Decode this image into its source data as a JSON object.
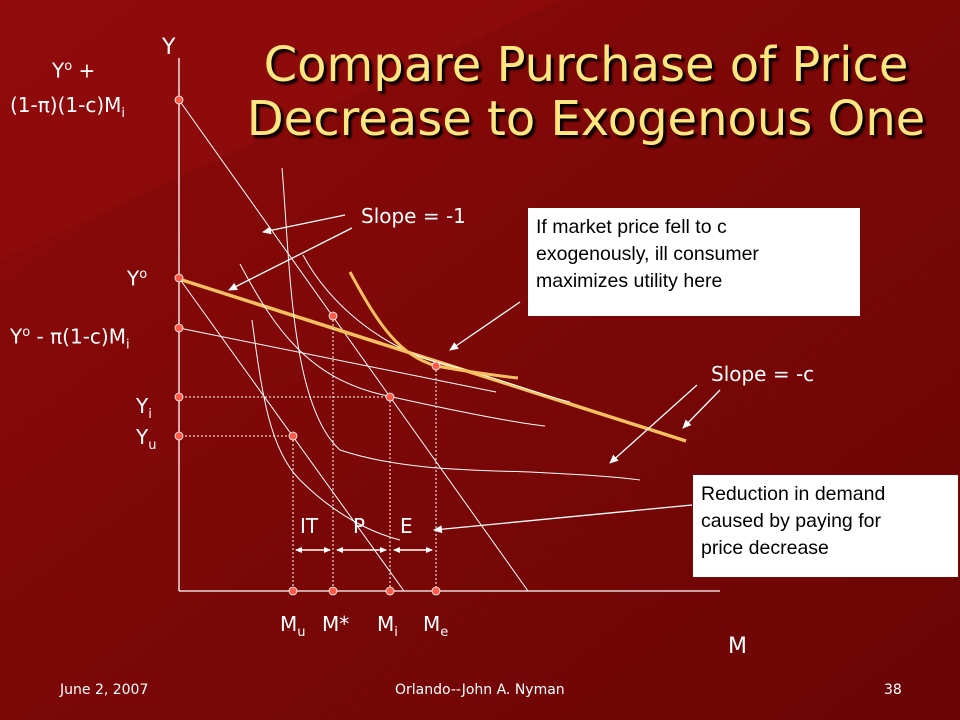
{
  "slide": {
    "title_line1": "Compare Purchase of Price",
    "title_line2": "Decrease to Exogenous One",
    "title_color": "#ffe680",
    "background": "#7a0808"
  },
  "axes": {
    "y_label": "Y",
    "x_label": "M"
  },
  "y_tick_labels": {
    "top_line1_main": "Y",
    "top_line1_sup": "o",
    "top_line1_rest": " +",
    "top_line2_main": "(1-π)(1-c)M",
    "top_line2_sub": "i",
    "yo_main": "Y",
    "yo_sup": "o",
    "mid_main": "Y",
    "mid_sup": "o",
    "mid_rest": " - π(1-c)M",
    "mid_sub": "i",
    "yi_main": "Y",
    "yi_sub": "i",
    "yu_main": "Y",
    "yu_sub": "u"
  },
  "x_tick_labels": {
    "mu_main": "M",
    "mu_sub": "u",
    "mstar": "M*",
    "mi_main": "M",
    "mi_sub": "i",
    "me_main": "M",
    "me_sub": "e"
  },
  "segment_labels": {
    "it": "IT",
    "p": "P",
    "e": "E"
  },
  "annotations": {
    "slope_minus_one": "Slope = -1",
    "slope_minus_c": "Slope = -c",
    "box1_lines": [
      "If market price fell to c",
      "exogenously, ill consumer",
      "maximizes utility here"
    ],
    "box2_lines": [
      "Reduction in demand",
      "caused by paying for",
      "price decrease"
    ]
  },
  "footer": {
    "date": "June 2, 2007",
    "center": "Orlando--John A. Nyman",
    "page": "38"
  },
  "colors": {
    "budget_line": "#f5c060",
    "curve": "#ffffff",
    "axis": "#ffffff",
    "dot": "#ff5a4a"
  }
}
